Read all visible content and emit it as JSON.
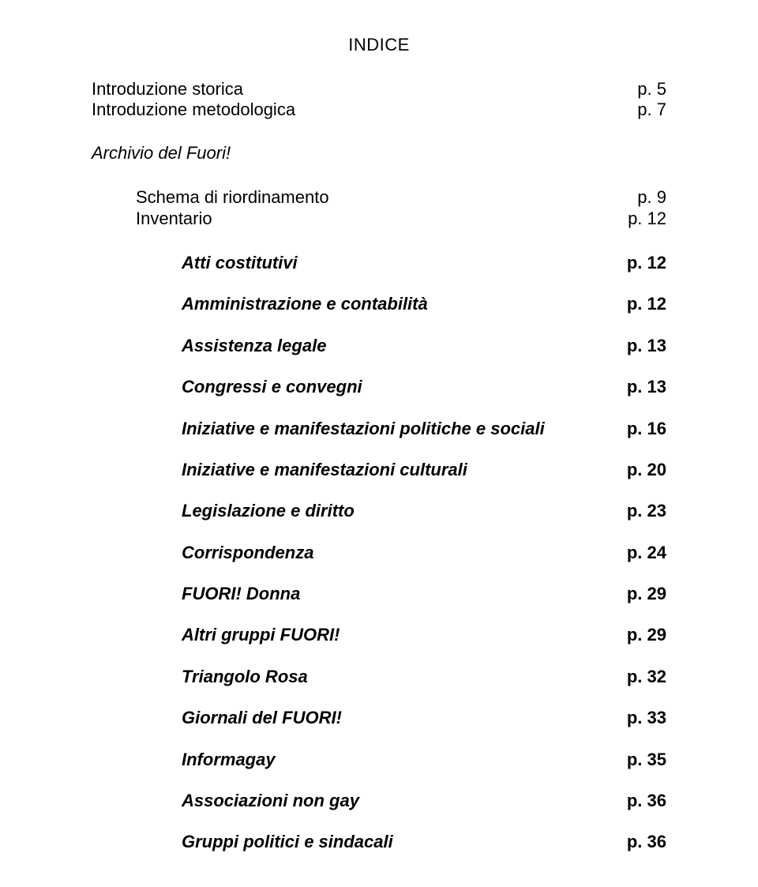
{
  "title": "INDICE",
  "intro": [
    {
      "label": "Introduzione storica",
      "page": "p. 5"
    },
    {
      "label": "Introduzione metodologica",
      "page": "p. 7"
    }
  ],
  "archivio": {
    "label": "Archivio del Fuori!"
  },
  "schema": [
    {
      "label": "Schema di riordinamento",
      "page": "p. 9"
    },
    {
      "label": "Inventario",
      "page": "p. 12"
    }
  ],
  "sections": [
    {
      "label": "Atti costitutivi",
      "page": "p. 12"
    },
    {
      "label": "Amministrazione e contabilità",
      "page": "p. 12"
    },
    {
      "label": "Assistenza legale",
      "page": "p. 13"
    },
    {
      "label": "Congressi e convegni",
      "page": "p. 13"
    },
    {
      "label": "Iniziative e manifestazioni politiche e sociali",
      "page": "p. 16"
    },
    {
      "label": "Iniziative e manifestazioni culturali",
      "page": "p. 20"
    },
    {
      "label": "Legislazione e diritto",
      "page": "p. 23"
    },
    {
      "label": "Corrispondenza",
      "page": "p. 24"
    },
    {
      "label": "FUORI! Donna",
      "page": "p. 29"
    },
    {
      "label": "Altri gruppi FUORI!",
      "page": "p. 29"
    },
    {
      "label": "Triangolo Rosa",
      "page": "p. 32"
    },
    {
      "label": "Giornali del FUORI!",
      "page": "p. 33"
    },
    {
      "label": "Informagay",
      "page": "p. 35"
    },
    {
      "label": "Associazioni non gay",
      "page": "p. 36"
    },
    {
      "label": "Gruppi politici e sindacali",
      "page": "p. 36"
    }
  ]
}
